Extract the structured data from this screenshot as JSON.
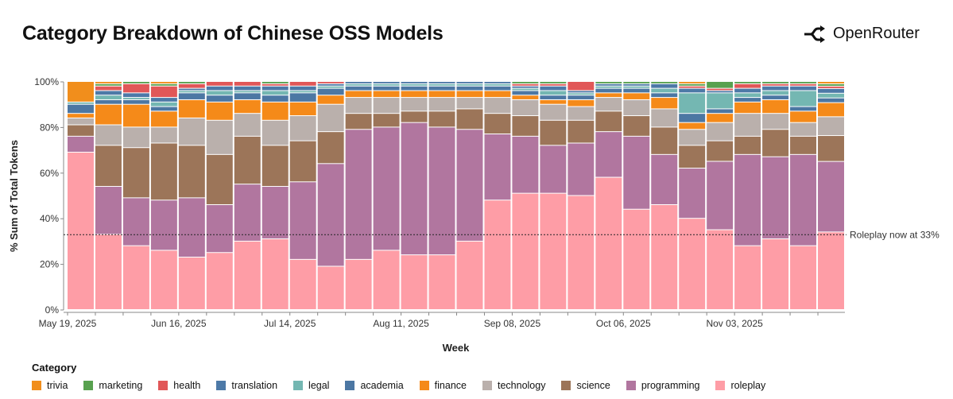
{
  "title": "Category Breakdown of Chinese OSS Models",
  "brand": {
    "name": "OpenRouter",
    "logo_icon": "openrouter-logo-icon"
  },
  "chart_data": {
    "type": "bar",
    "stacked": true,
    "normalized": true,
    "xlabel": "Week",
    "ylabel": "% Sum of Total Tokens",
    "ylim": [
      0,
      100
    ],
    "yticks": [
      "0%",
      "20%",
      "40%",
      "60%",
      "80%",
      "100%"
    ],
    "xticks": [
      {
        "label": "May 19, 2025",
        "index": 0
      },
      {
        "label": "Jun 16, 2025",
        "index": 4
      },
      {
        "label": "Jul 14, 2025",
        "index": 8
      },
      {
        "label": "Aug 11, 2025",
        "index": 12
      },
      {
        "label": "Sep 08, 2025",
        "index": 16
      },
      {
        "label": "Oct 06, 2025",
        "index": 20
      },
      {
        "label": "Nov 03, 2025",
        "index": 24
      }
    ],
    "legend_title": "Category",
    "legend_position": "bottom",
    "grid": false,
    "categories": [
      "roleplay",
      "programming",
      "science",
      "technology",
      "finance",
      "academia",
      "legal",
      "translation",
      "health",
      "marketing",
      "trivia"
    ],
    "colors": {
      "roleplay": "#fe9da6",
      "programming": "#b1769f",
      "science": "#9c7559",
      "technology": "#bab0ac",
      "finance": "#f58a19",
      "academia": "#4c77a3",
      "legal": "#74b7b2",
      "translation": "#4d79a7",
      "health": "#e15758",
      "marketing": "#58a14f",
      "trivia": "#f18e1c"
    },
    "legend_order": [
      "trivia",
      "marketing",
      "health",
      "translation",
      "legal",
      "academia",
      "finance",
      "technology",
      "science",
      "programming",
      "roleplay"
    ],
    "annotation": {
      "label": "Roleplay now at 33%",
      "y": 33
    },
    "weeks": [
      {
        "roleplay": 69,
        "programming": 7,
        "science": 5,
        "technology": 3,
        "finance": 2,
        "academia": 4,
        "legal": 1,
        "translation": 0,
        "health": 0,
        "marketing": 0,
        "trivia": 9
      },
      {
        "roleplay": 33,
        "programming": 21,
        "science": 18,
        "technology": 9,
        "finance": 9,
        "academia": 2,
        "legal": 2,
        "translation": 2,
        "health": 2,
        "marketing": 1,
        "trivia": 1
      },
      {
        "roleplay": 28,
        "programming": 21,
        "science": 22,
        "technology": 9,
        "finance": 10,
        "academia": 2,
        "legal": 1,
        "translation": 2,
        "health": 4,
        "marketing": 1,
        "trivia": 0
      },
      {
        "roleplay": 26,
        "programming": 22,
        "science": 25,
        "technology": 7,
        "finance": 7,
        "academia": 2,
        "legal": 2,
        "translation": 2,
        "health": 5,
        "marketing": 1,
        "trivia": 1
      },
      {
        "roleplay": 23,
        "programming": 26,
        "science": 23,
        "technology": 12,
        "finance": 8,
        "academia": 3,
        "legal": 1,
        "translation": 1,
        "health": 2,
        "marketing": 1,
        "trivia": 0
      },
      {
        "roleplay": 25,
        "programming": 21,
        "science": 22,
        "technology": 15,
        "finance": 8,
        "academia": 3,
        "legal": 2,
        "translation": 2,
        "health": 2,
        "marketing": 0,
        "trivia": 0
      },
      {
        "roleplay": 30,
        "programming": 25,
        "science": 21,
        "technology": 10,
        "finance": 6,
        "academia": 3,
        "legal": 1,
        "translation": 2,
        "health": 2,
        "marketing": 0,
        "trivia": 0
      },
      {
        "roleplay": 31,
        "programming": 23,
        "science": 18,
        "technology": 11,
        "finance": 8,
        "academia": 3,
        "legal": 2,
        "translation": 2,
        "health": 1,
        "marketing": 1,
        "trivia": 0
      },
      {
        "roleplay": 22,
        "programming": 34,
        "science": 18,
        "technology": 11,
        "finance": 6,
        "academia": 4,
        "legal": 1,
        "translation": 2,
        "health": 2,
        "marketing": 0,
        "trivia": 0
      },
      {
        "roleplay": 19,
        "programming": 45,
        "science": 14,
        "technology": 12,
        "finance": 4,
        "academia": 3,
        "legal": 1,
        "translation": 1,
        "health": 1,
        "marketing": 0,
        "trivia": 0
      },
      {
        "roleplay": 22,
        "programming": 57,
        "science": 7,
        "technology": 7,
        "finance": 3,
        "academia": 2,
        "legal": 1,
        "translation": 1,
        "health": 0,
        "marketing": 0,
        "trivia": 0
      },
      {
        "roleplay": 26,
        "programming": 54,
        "science": 6,
        "technology": 7,
        "finance": 3,
        "academia": 2,
        "legal": 1,
        "translation": 1,
        "health": 0,
        "marketing": 0,
        "trivia": 0
      },
      {
        "roleplay": 24,
        "programming": 58,
        "science": 5,
        "technology": 6,
        "finance": 3,
        "academia": 2,
        "legal": 1,
        "translation": 1,
        "health": 0,
        "marketing": 0,
        "trivia": 0
      },
      {
        "roleplay": 24,
        "programming": 56,
        "science": 7,
        "technology": 6,
        "finance": 3,
        "academia": 2,
        "legal": 1,
        "translation": 1,
        "health": 0,
        "marketing": 0,
        "trivia": 0
      },
      {
        "roleplay": 30,
        "programming": 49,
        "science": 9,
        "technology": 5,
        "finance": 3,
        "academia": 2,
        "legal": 1,
        "translation": 1,
        "health": 0,
        "marketing": 0,
        "trivia": 0
      },
      {
        "roleplay": 48,
        "programming": 29,
        "science": 9,
        "technology": 7,
        "finance": 3,
        "academia": 2,
        "legal": 1,
        "translation": 1,
        "health": 0,
        "marketing": 0,
        "trivia": 0
      },
      {
        "roleplay": 51,
        "programming": 25,
        "science": 9,
        "technology": 7,
        "finance": 2,
        "academia": 2,
        "legal": 1,
        "translation": 1,
        "health": 1,
        "marketing": 1,
        "trivia": 0
      },
      {
        "roleplay": 51,
        "programming": 21,
        "science": 11,
        "technology": 7,
        "finance": 2,
        "academia": 2,
        "legal": 2,
        "translation": 2,
        "health": 1,
        "marketing": 1,
        "trivia": 0
      },
      {
        "roleplay": 50,
        "programming": 23,
        "science": 10,
        "technology": 6,
        "finance": 3,
        "academia": 2,
        "legal": 1,
        "translation": 1,
        "health": 4,
        "marketing": 0,
        "trivia": 0
      },
      {
        "roleplay": 58,
        "programming": 20,
        "science": 9,
        "technology": 6,
        "finance": 2,
        "academia": 2,
        "legal": 1,
        "translation": 1,
        "health": 0,
        "marketing": 1,
        "trivia": 0
      },
      {
        "roleplay": 44,
        "programming": 32,
        "science": 9,
        "technology": 7,
        "finance": 3,
        "academia": 2,
        "legal": 1,
        "translation": 1,
        "health": 0,
        "marketing": 1,
        "trivia": 0
      },
      {
        "roleplay": 46,
        "programming": 22,
        "science": 12,
        "technology": 8,
        "finance": 5,
        "academia": 2,
        "legal": 2,
        "translation": 2,
        "health": 0,
        "marketing": 1,
        "trivia": 0
      },
      {
        "roleplay": 40,
        "programming": 22,
        "science": 10,
        "technology": 7,
        "finance": 3,
        "academia": 4,
        "legal": 9,
        "translation": 2,
        "health": 1,
        "marketing": 1,
        "trivia": 1
      },
      {
        "roleplay": 35,
        "programming": 30,
        "science": 9,
        "technology": 8,
        "finance": 4,
        "academia": 2,
        "legal": 7,
        "translation": 1,
        "health": 1,
        "marketing": 3,
        "trivia": 0
      },
      {
        "roleplay": 28,
        "programming": 40,
        "science": 8,
        "technology": 10,
        "finance": 5,
        "academia": 2,
        "legal": 2,
        "translation": 2,
        "health": 2,
        "marketing": 1,
        "trivia": 0
      },
      {
        "roleplay": 31,
        "programming": 36,
        "science": 12,
        "technology": 7,
        "finance": 6,
        "academia": 2,
        "legal": 2,
        "translation": 2,
        "health": 1,
        "marketing": 1,
        "trivia": 0
      },
      {
        "roleplay": 28,
        "programming": 40,
        "science": 8,
        "technology": 6,
        "finance": 5,
        "academia": 2,
        "legal": 7,
        "translation": 2,
        "health": 1,
        "marketing": 1,
        "trivia": 0
      },
      {
        "roleplay": 33,
        "programming": 30,
        "science": 11,
        "technology": 8,
        "finance": 6,
        "academia": 2,
        "legal": 2,
        "translation": 2,
        "health": 1,
        "marketing": 1,
        "trivia": 1
      }
    ]
  }
}
